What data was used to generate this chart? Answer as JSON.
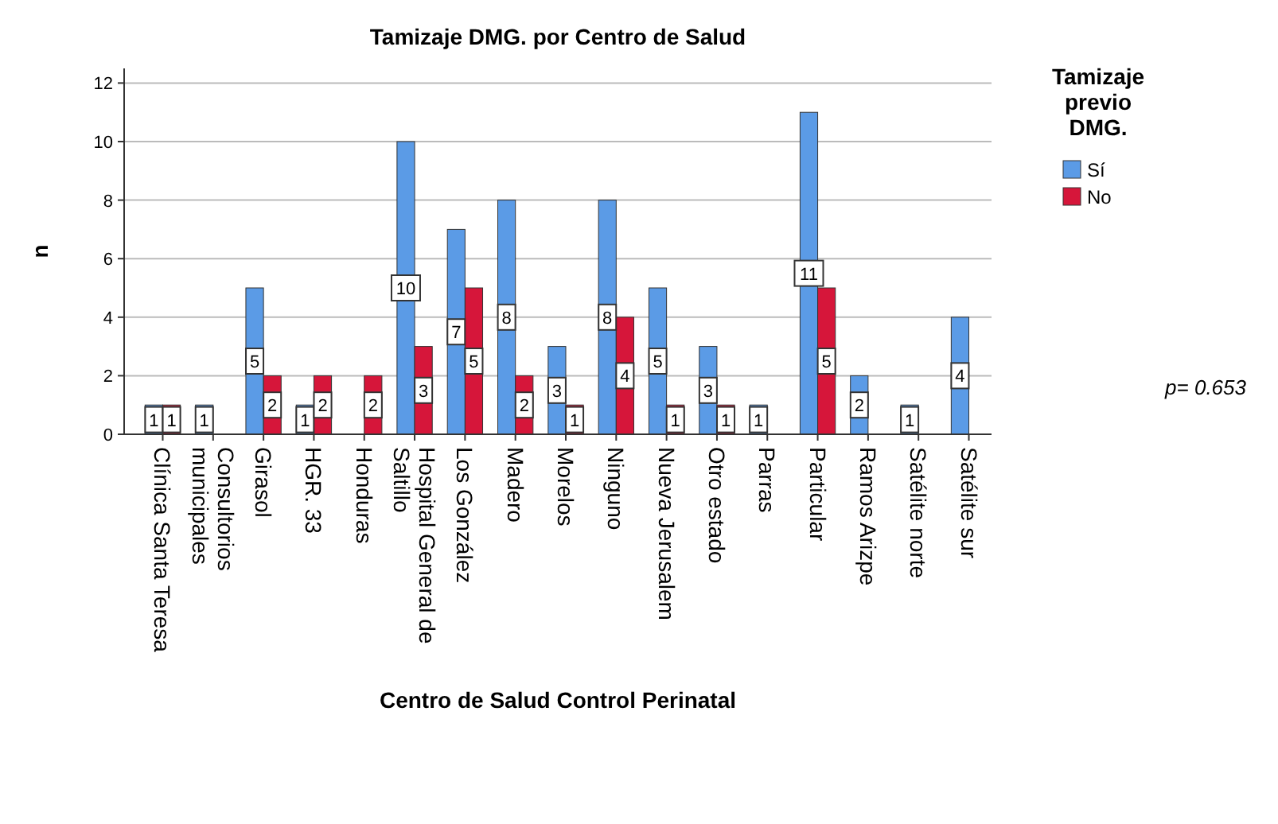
{
  "chart_data": {
    "type": "bar",
    "title": "Tamizaje DMG. por Centro de Salud",
    "xlabel": "Centro de Salud Control Perinatal",
    "ylabel": "n",
    "legend_title": "Tamizaje previo DMG.",
    "categories": [
      "Clínica Santa Teresa",
      "Consultorios municipales",
      "Girasol",
      "HGR. 33",
      "Honduras",
      "Hospital General de Saltillo",
      "Los González",
      "Madero",
      "Morelos",
      "Ninguno",
      "Nueva Jerusalem",
      "Otro estado",
      "Parras",
      "Particular",
      "Ramos Arizpe",
      "Satélite norte",
      "Satélite sur"
    ],
    "series": [
      {
        "name": "Sí",
        "color": "#5b9be6",
        "values": [
          1,
          1,
          5,
          1,
          null,
          10,
          7,
          8,
          3,
          8,
          5,
          3,
          1,
          11,
          2,
          1,
          4
        ]
      },
      {
        "name": "No",
        "color": "#d6163a",
        "values": [
          1,
          null,
          2,
          2,
          2,
          3,
          5,
          2,
          1,
          4,
          1,
          1,
          null,
          5,
          null,
          null,
          null
        ]
      }
    ],
    "ylim": [
      0,
      12.5
    ],
    "yticks": [
      0,
      2,
      4,
      6,
      8,
      10,
      12
    ],
    "grid": "y",
    "legend": "top right",
    "data_labels": true,
    "annotations": [
      "p= 0.653"
    ]
  }
}
